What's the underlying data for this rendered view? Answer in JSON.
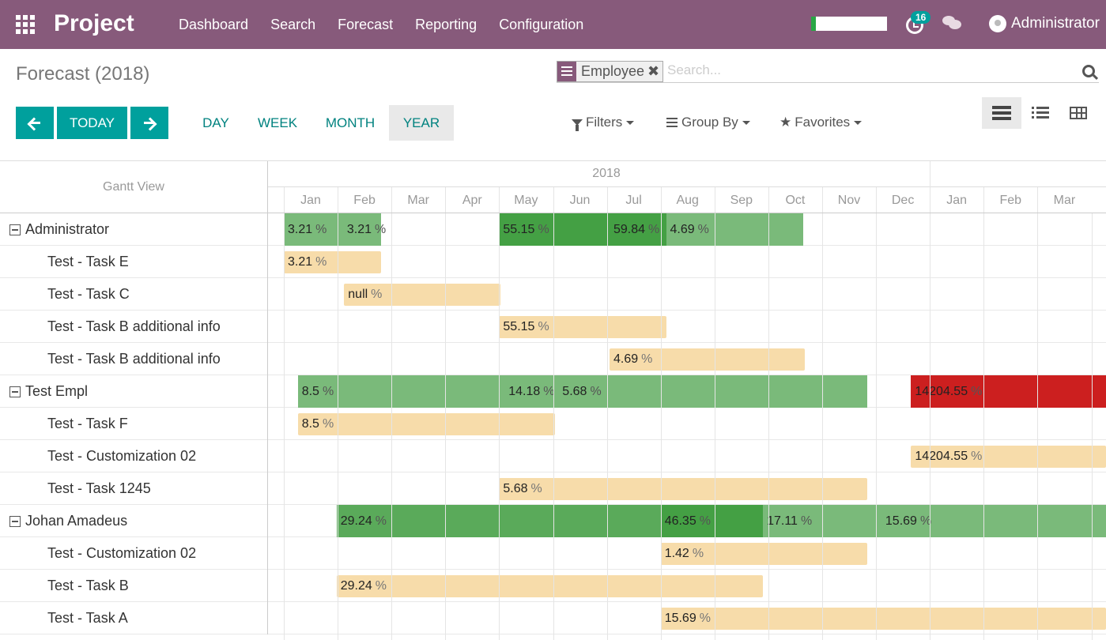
{
  "app": {
    "name": "Project"
  },
  "nav": {
    "menu": [
      "Dashboard",
      "Search",
      "Forecast",
      "Reporting",
      "Configuration"
    ],
    "activity_count": "16",
    "user": "Administrator"
  },
  "control": {
    "breadcrumb": "Forecast (2018)",
    "facet": "Employee",
    "search_placeholder": "Search...",
    "today_label": "TODAY",
    "scales": [
      "DAY",
      "WEEK",
      "MONTH",
      "YEAR"
    ],
    "active_scale": "YEAR",
    "filters_label": "Filters",
    "groupby_label": "Group By",
    "favorites_label": "Favorites"
  },
  "gantt": {
    "title": "Gantt View",
    "years": [
      "2018"
    ],
    "months": [
      "Jan",
      "Feb",
      "Mar",
      "Apr",
      "May",
      "Jun",
      "Jul",
      "Aug",
      "Sep",
      "Oct",
      "Nov",
      "Dec",
      "Jan",
      "Feb",
      "Mar"
    ],
    "colors": {
      "task": "#f7dcaa",
      "light_green": "#7aba7a",
      "green": "#5aaa5a",
      "dark_green": "#44a044",
      "red": "#cc1f1f"
    },
    "rows": [
      {
        "type": "group",
        "label": "Administrator",
        "segments": [
          {
            "start": 0,
            "end": 1.8,
            "color": "light_green",
            "labels": [
              {
                "at": 0,
                "text": "3.21"
              },
              {
                "at": 1.1,
                "text": "3.21"
              }
            ]
          },
          {
            "start": 4,
            "end": 7.1,
            "color": "dark_green",
            "labels": [
              {
                "at": 4,
                "text": "55.15"
              },
              {
                "at": 6.05,
                "text": "59.84"
              }
            ]
          },
          {
            "start": 7.1,
            "end": 9.65,
            "color": "light_green",
            "labels": [
              {
                "at": 7.1,
                "text": "4.69"
              }
            ]
          }
        ]
      },
      {
        "type": "task",
        "label": "Test - Task E",
        "bar": {
          "start": 0,
          "end": 1.8,
          "text": "3.21"
        }
      },
      {
        "type": "task",
        "label": "Test - Task C",
        "bar": {
          "start": 1.12,
          "end": 4.03,
          "text": "null"
        }
      },
      {
        "type": "task",
        "label": "Test - Task B additional info",
        "bar": {
          "start": 4,
          "end": 7.1,
          "text": "55.15"
        }
      },
      {
        "type": "task",
        "label": "Test - Task B additional info",
        "bar": {
          "start": 6.05,
          "end": 9.68,
          "text": "4.69"
        }
      },
      {
        "type": "group",
        "label": "Test Empl",
        "segments": [
          {
            "start": 0.26,
            "end": 10.84,
            "color": "light_green",
            "labels": [
              {
                "at": 0.26,
                "text": "8.5"
              },
              {
                "at": 4.1,
                "text": "14.18"
              },
              {
                "at": 5.1,
                "text": "5.68"
              }
            ]
          },
          {
            "start": 11.65,
            "end": 15.6,
            "color": "red",
            "labels": [
              {
                "at": 11.65,
                "text": "14204.55"
              }
            ]
          }
        ]
      },
      {
        "type": "task",
        "label": "Test - Task F",
        "bar": {
          "start": 0.26,
          "end": 5.03,
          "text": "8.5"
        }
      },
      {
        "type": "task",
        "label": "Test - Customization 02",
        "bar": {
          "start": 11.65,
          "end": 15.6,
          "text": "14204.55"
        }
      },
      {
        "type": "task",
        "label": "Test - Task 1245",
        "bar": {
          "start": 4,
          "end": 10.84,
          "text": "5.68"
        }
      },
      {
        "type": "group",
        "label": "Johan Amadeus",
        "segments": [
          {
            "start": 0.98,
            "end": 7.0,
            "color": "green",
            "labels": [
              {
                "at": 0.98,
                "text": "29.24"
              }
            ]
          },
          {
            "start": 7.0,
            "end": 8.9,
            "color": "dark_green",
            "labels": [
              {
                "at": 7.0,
                "text": "46.35"
              }
            ]
          },
          {
            "start": 8.9,
            "end": 15.6,
            "color": "light_green",
            "labels": [
              {
                "at": 8.9,
                "text": "17.11"
              },
              {
                "at": 11.1,
                "text": "15.69"
              }
            ]
          }
        ]
      },
      {
        "type": "task",
        "label": "Test - Customization 02",
        "bar": {
          "start": 7.0,
          "end": 10.84,
          "text": "1.42"
        }
      },
      {
        "type": "task",
        "label": "Test - Task B",
        "bar": {
          "start": 0.98,
          "end": 8.9,
          "text": "29.24"
        }
      },
      {
        "type": "task",
        "label": "Test - Task A",
        "bar": {
          "start": 7.0,
          "end": 15.6,
          "text": "15.69"
        }
      }
    ]
  }
}
